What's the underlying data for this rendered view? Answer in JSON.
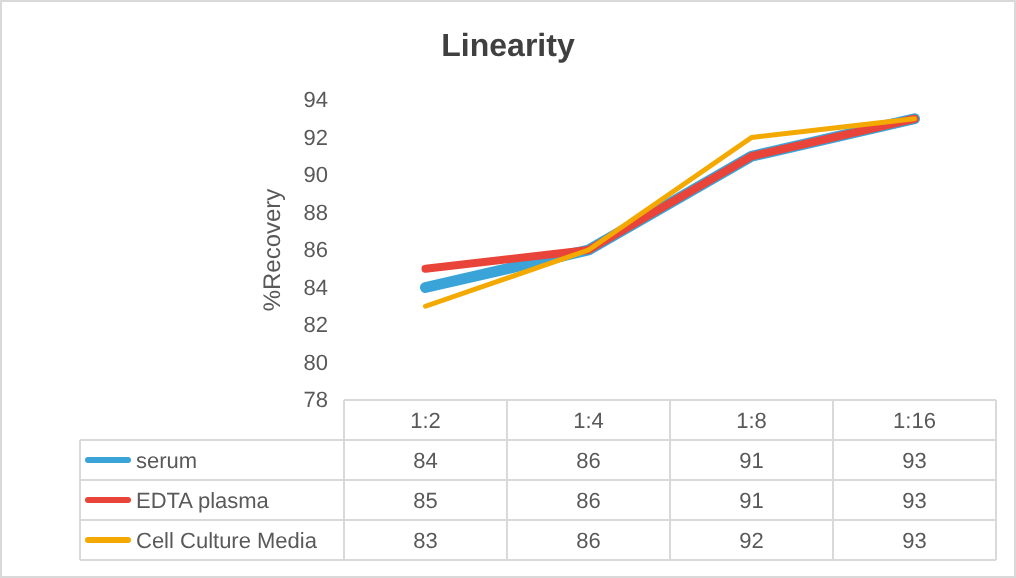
{
  "chart_data": {
    "type": "line",
    "title": "Linearity",
    "ylabel": "%Recovery",
    "categories": [
      "1:2",
      "1:4",
      "1:8",
      "1:16"
    ],
    "series": [
      {
        "name": "serum",
        "color": "#3aa4d8",
        "values": [
          84,
          86,
          91,
          93
        ]
      },
      {
        "name": "EDTA plasma",
        "color": "#e8443a",
        "values": [
          85,
          86,
          91,
          93
        ]
      },
      {
        "name": "Cell Culture Media",
        "color": "#f4a900",
        "values": [
          83,
          86,
          92,
          93
        ]
      }
    ],
    "ylim": [
      78,
      94
    ],
    "yticks": [
      78,
      80,
      82,
      84,
      86,
      88,
      90,
      92,
      94
    ],
    "grid": false,
    "legend": "bottom",
    "data_labels": true,
    "line_style": "solid"
  }
}
